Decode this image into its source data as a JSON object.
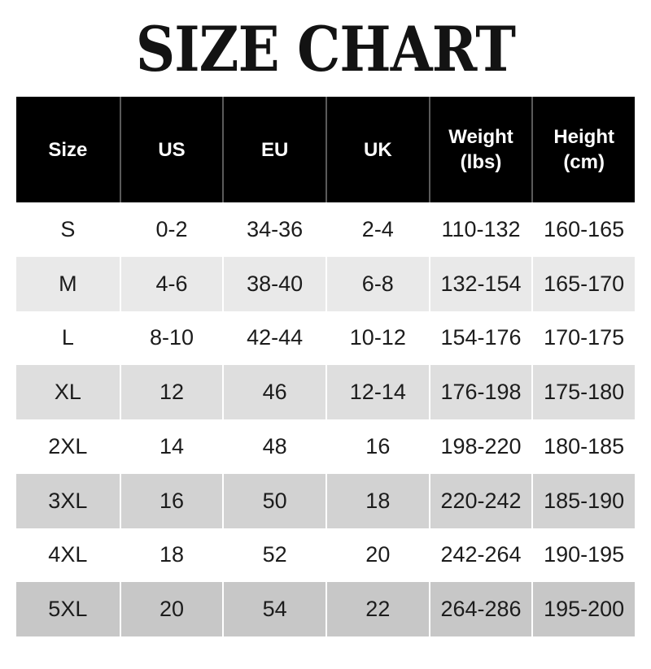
{
  "title": "SIZE CHART",
  "chart_data": {
    "type": "table",
    "title": "SIZE CHART",
    "columns": [
      "Size",
      "US",
      "EU",
      "UK",
      "Weight (lbs)",
      "Height (cm)"
    ],
    "rows": [
      [
        "S",
        "0-2",
        "34-36",
        "2-4",
        "110-132",
        "160-165"
      ],
      [
        "M",
        "4-6",
        "38-40",
        "6-8",
        "132-154",
        "165-170"
      ],
      [
        "L",
        "8-10",
        "42-44",
        "10-12",
        "154-176",
        "170-175"
      ],
      [
        "XL",
        "12",
        "46",
        "12-14",
        "176-198",
        "175-180"
      ],
      [
        "2XL",
        "14",
        "48",
        "16",
        "198-220",
        "180-185"
      ],
      [
        "3XL",
        "16",
        "50",
        "18",
        "220-242",
        "185-190"
      ],
      [
        "4XL",
        "18",
        "52",
        "20",
        "242-264",
        "190-195"
      ],
      [
        "5XL",
        "20",
        "54",
        "22",
        "264-286",
        "195-200"
      ]
    ]
  },
  "header": {
    "columns": [
      {
        "line1": "Size",
        "line2": ""
      },
      {
        "line1": "US",
        "line2": ""
      },
      {
        "line1": "EU",
        "line2": ""
      },
      {
        "line1": "UK",
        "line2": ""
      },
      {
        "line1": "Weight",
        "line2": "(lbs)"
      },
      {
        "line1": "Height",
        "line2": "(cm)"
      }
    ]
  },
  "colors": {
    "header_bg": "#000000",
    "header_text": "#ffffff",
    "header_divider": "#5a5a5a",
    "body_text": "#1c1c1c",
    "cell_divider": "#ffffff",
    "row_backgrounds": [
      "#ffffff",
      "#e9e9e9",
      "#ffffff",
      "#dedede",
      "#ffffff",
      "#d2d2d2",
      "#ffffff",
      "#c7c7c7"
    ]
  }
}
